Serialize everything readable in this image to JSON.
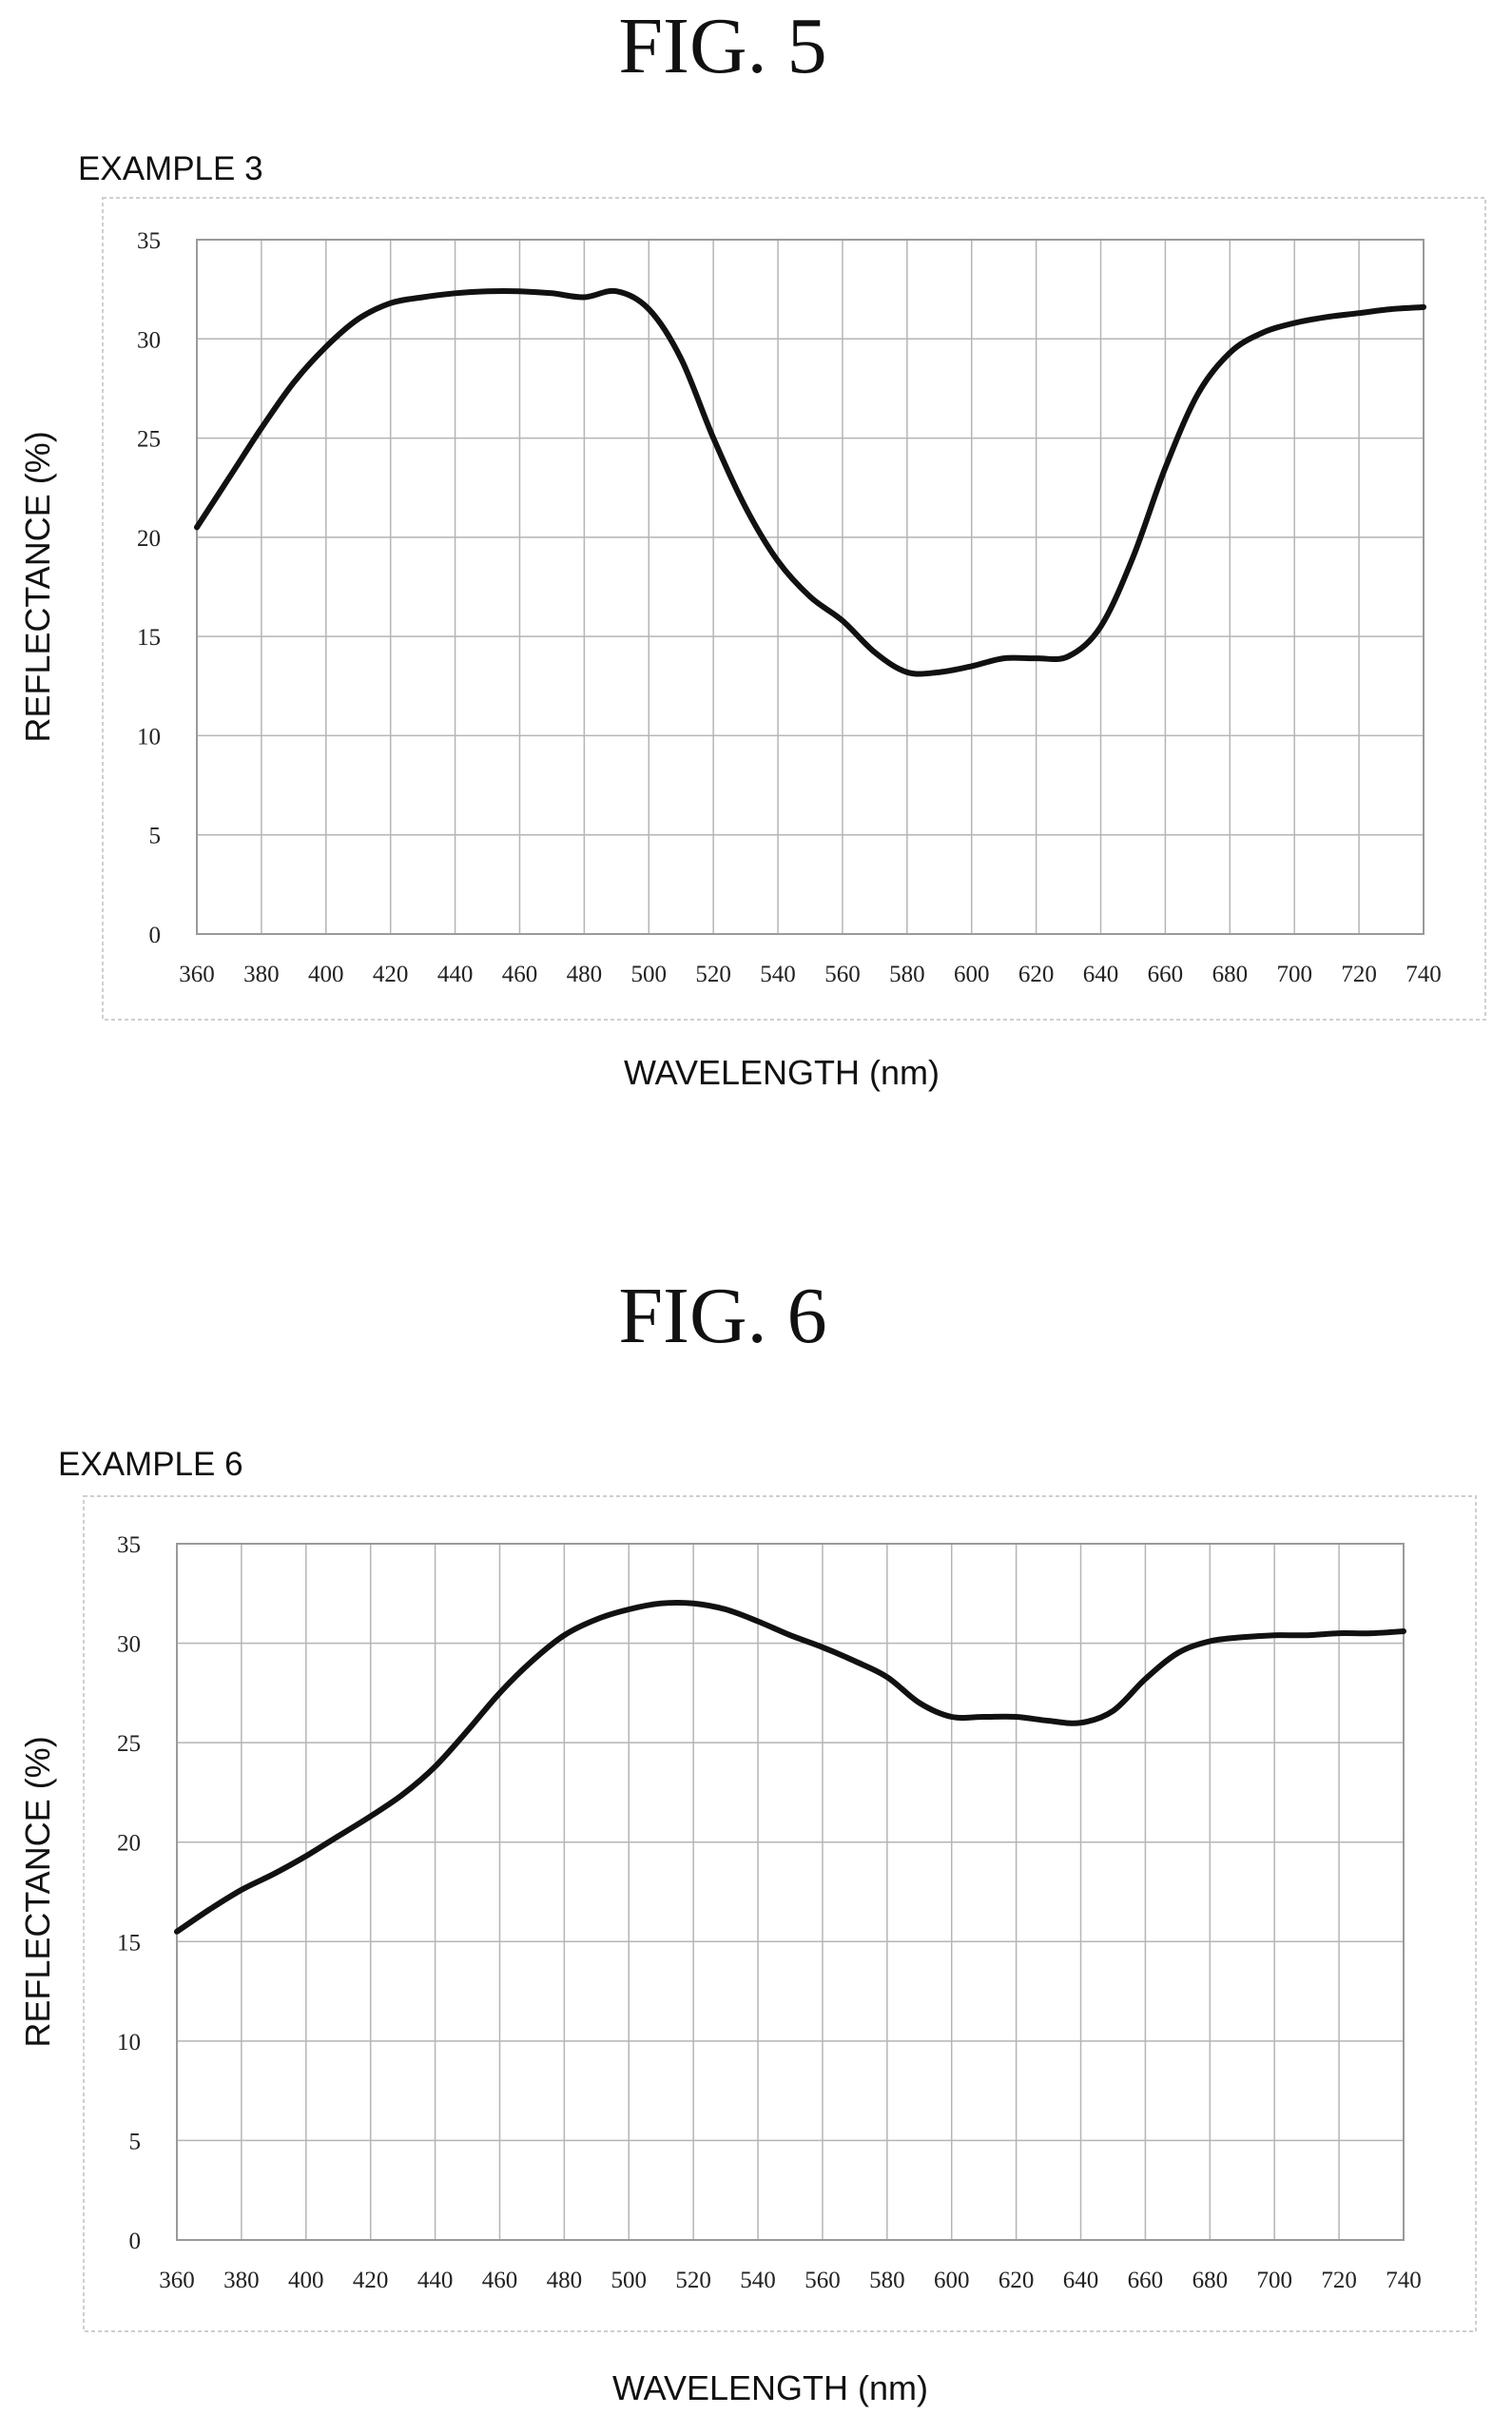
{
  "figures": [
    {
      "title": "FIG. 5",
      "example_label": "EXAMPLE 3"
    },
    {
      "title": "FIG. 6",
      "example_label": "EXAMPLE 6"
    }
  ],
  "chart_data": [
    {
      "type": "line",
      "title": "EXAMPLE 3",
      "xlabel": "WAVELENGTH (nm)",
      "ylabel": "REFLECTANCE (%)",
      "xlim": [
        360,
        740
      ],
      "ylim": [
        0,
        35
      ],
      "x_ticks": [
        "360",
        "380",
        "400",
        "420",
        "440",
        "460",
        "480",
        "500",
        "520",
        "540",
        "560",
        "580",
        "600",
        "620",
        "640",
        "660",
        "680",
        "700",
        "720",
        "740"
      ],
      "y_ticks": [
        "0",
        "5",
        "10",
        "15",
        "20",
        "25",
        "30",
        "35"
      ],
      "grid": true,
      "line_color": "#111111",
      "series": [
        {
          "x": [
            360,
            370,
            380,
            390,
            400,
            410,
            420,
            430,
            440,
            450,
            460,
            470,
            480,
            490,
            500,
            510,
            520,
            530,
            540,
            550,
            560,
            570,
            580,
            590,
            600,
            610,
            620,
            630,
            640,
            650,
            660,
            670,
            680,
            690,
            700,
            710,
            720,
            730,
            740
          ],
          "y": [
            20.5,
            23.0,
            25.5,
            27.8,
            29.6,
            31.0,
            31.8,
            32.1,
            32.3,
            32.4,
            32.4,
            32.3,
            32.1,
            32.4,
            31.5,
            29.0,
            25.0,
            21.5,
            18.8,
            17.0,
            15.8,
            14.2,
            13.2,
            13.2,
            13.5,
            13.9,
            13.9,
            14.0,
            15.5,
            19.0,
            23.5,
            27.2,
            29.3,
            30.3,
            30.8,
            31.1,
            31.3,
            31.5,
            31.6
          ]
        }
      ]
    },
    {
      "type": "line",
      "title": "EXAMPLE 6",
      "xlabel": "WAVELENGTH (nm)",
      "ylabel": "REFLECTANCE (%)",
      "xlim": [
        360,
        740
      ],
      "ylim": [
        0,
        35
      ],
      "x_ticks": [
        "360",
        "380",
        "400",
        "420",
        "440",
        "460",
        "480",
        "500",
        "520",
        "540",
        "560",
        "580",
        "600",
        "620",
        "640",
        "660",
        "680",
        "700",
        "720",
        "740"
      ],
      "y_ticks": [
        "0",
        "5",
        "10",
        "15",
        "20",
        "25",
        "30",
        "35"
      ],
      "grid": true,
      "line_color": "#111111",
      "series": [
        {
          "x": [
            360,
            370,
            380,
            390,
            400,
            410,
            420,
            430,
            440,
            450,
            460,
            470,
            480,
            490,
            500,
            510,
            520,
            530,
            540,
            550,
            560,
            570,
            580,
            590,
            600,
            610,
            620,
            630,
            640,
            650,
            660,
            670,
            680,
            690,
            700,
            710,
            720,
            730,
            740
          ],
          "y": [
            15.5,
            16.6,
            17.6,
            18.4,
            19.3,
            20.3,
            21.3,
            22.4,
            23.8,
            25.6,
            27.5,
            29.1,
            30.4,
            31.2,
            31.7,
            32.0,
            32.0,
            31.7,
            31.1,
            30.4,
            29.8,
            29.1,
            28.3,
            27.0,
            26.3,
            26.3,
            26.3,
            26.1,
            26.0,
            26.6,
            28.2,
            29.5,
            30.1,
            30.3,
            30.4,
            30.4,
            30.5,
            30.5,
            30.6
          ]
        }
      ]
    }
  ]
}
